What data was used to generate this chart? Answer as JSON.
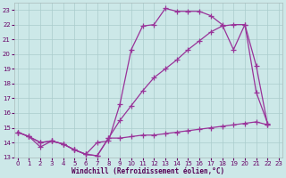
{
  "bg_color": "#cce8e8",
  "grid_color": "#aacccc",
  "line_color": "#993399",
  "xlabel": "Windchill (Refroidissement éolien,°C)",
  "xlim": [
    -0.3,
    23.3
  ],
  "ylim": [
    13,
    23.5
  ],
  "xticks": [
    0,
    1,
    2,
    3,
    4,
    5,
    6,
    7,
    8,
    9,
    10,
    11,
    12,
    13,
    14,
    15,
    16,
    17,
    18,
    19,
    20,
    21,
    22,
    23
  ],
  "yticks": [
    13,
    14,
    15,
    16,
    17,
    18,
    19,
    20,
    21,
    22,
    23
  ],
  "curve1": {
    "x": [
      0,
      1,
      2,
      3,
      4,
      5,
      6,
      7,
      8,
      9,
      10,
      11,
      12,
      13,
      14,
      15,
      16,
      17,
      18,
      19,
      20,
      21,
      22
    ],
    "y": [
      14.7,
      14.4,
      13.7,
      14.1,
      13.9,
      13.5,
      13.2,
      14.0,
      14.1,
      16.6,
      20.3,
      21.9,
      22.0,
      23.1,
      22.9,
      22.9,
      22.9,
      22.6,
      22.0,
      20.3,
      22.0,
      17.4,
      15.3
    ]
  },
  "curve2": {
    "x": [
      0,
      1,
      2,
      3,
      4,
      5,
      6,
      7,
      8,
      9,
      10,
      11,
      12,
      13,
      14,
      15,
      16,
      17,
      18,
      19,
      20,
      21,
      22
    ],
    "y": [
      14.7,
      14.4,
      14.0,
      14.1,
      13.9,
      13.5,
      13.2,
      13.1,
      14.3,
      15.5,
      16.5,
      17.5,
      18.4,
      19.0,
      19.6,
      20.3,
      20.9,
      21.5,
      21.9,
      22.0,
      22.0,
      19.2,
      15.2
    ]
  },
  "curve3": {
    "x": [
      0,
      1,
      2,
      3,
      4,
      5,
      6,
      7,
      8,
      9,
      10,
      11,
      12,
      13,
      14,
      15,
      16,
      17,
      18,
      19,
      20,
      21,
      22
    ],
    "y": [
      14.7,
      14.4,
      14.0,
      14.1,
      13.9,
      13.5,
      13.2,
      13.1,
      14.3,
      14.3,
      14.4,
      14.5,
      14.5,
      14.6,
      14.7,
      14.8,
      14.9,
      15.0,
      15.1,
      15.2,
      15.3,
      15.4,
      15.2
    ]
  }
}
